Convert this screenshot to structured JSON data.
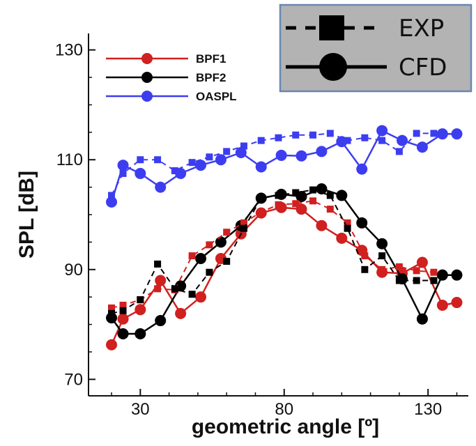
{
  "chart_data": {
    "type": "line",
    "xlabel": "geometric angle [º]",
    "ylabel": "SPL [dB]",
    "xlim": [
      12,
      144
    ],
    "ylim": [
      67,
      133
    ],
    "xticks": [
      30,
      80,
      130
    ],
    "yticks": [
      70,
      90,
      110,
      130
    ],
    "legend": {
      "placement": "top-left",
      "entries": [
        "BPF1",
        "BPF2",
        "OASPL"
      ]
    },
    "style_key": {
      "placement": "top-right",
      "entries": [
        {
          "label": "EXP",
          "line": "dashed",
          "marker": "square"
        },
        {
          "label": "CFD",
          "line": "solid",
          "marker": "circle"
        }
      ]
    },
    "colors": {
      "BPF1": "#d0201f",
      "BPF2": "#000000",
      "OASPL": "#3d3df0"
    },
    "series": [
      {
        "name": "BPF1",
        "source": "CFD",
        "color": "#d0201f",
        "x": [
          20,
          24,
          30,
          37,
          44,
          51,
          58,
          65,
          72,
          79,
          86,
          93,
          100,
          107,
          114,
          121,
          128,
          135,
          140
        ],
        "y": [
          76.3,
          81.0,
          82.7,
          88.0,
          82.0,
          85.0,
          92.0,
          96.5,
          100.3,
          101.3,
          101.0,
          98.0,
          95.7,
          93.5,
          89.5,
          89.3,
          91.3,
          83.5,
          84.0
        ]
      },
      {
        "name": "BPF2",
        "source": "CFD",
        "color": "#000000",
        "x": [
          20,
          24,
          30,
          37,
          44,
          51,
          58,
          65,
          72,
          79,
          86,
          93,
          100,
          107,
          114,
          121,
          128,
          135,
          140
        ],
        "y": [
          81.2,
          78.3,
          78.3,
          80.7,
          87.0,
          92.0,
          95.0,
          98.0,
          103.0,
          103.7,
          103.3,
          104.7,
          103.5,
          98.5,
          94.7,
          88.3,
          81.0,
          89.0,
          89.0
        ]
      },
      {
        "name": "OASPL",
        "source": "CFD",
        "color": "#3d3df0",
        "x": [
          20,
          24,
          30,
          37,
          44,
          51,
          58,
          65,
          72,
          79,
          86,
          93,
          100,
          107,
          114,
          121,
          128,
          135,
          140
        ],
        "y": [
          102.3,
          109.0,
          107.5,
          105.0,
          107.5,
          109.0,
          110.0,
          111.3,
          108.7,
          110.8,
          110.7,
          111.5,
          113.3,
          108.3,
          115.3,
          113.5,
          112.3,
          114.7,
          114.7
        ]
      },
      {
        "name": "BPF1",
        "source": "EXP",
        "color": "#d0201f",
        "x": [
          20,
          24,
          30,
          36,
          42,
          48,
          54,
          60,
          66,
          72,
          78,
          84,
          90,
          96,
          102,
          108,
          114,
          120,
          126,
          132
        ],
        "y": [
          83.0,
          83.5,
          84.5,
          86.5,
          86.3,
          92.5,
          94.5,
          96.8,
          98.5,
          100.5,
          101.8,
          102.0,
          102.5,
          101.0,
          98.5,
          92.5,
          90.0,
          90.5,
          89.8,
          89.5
        ]
      },
      {
        "name": "BPF2",
        "source": "EXP",
        "color": "#000000",
        "x": [
          20,
          24,
          30,
          36,
          42,
          48,
          54,
          60,
          66,
          72,
          78,
          84,
          90,
          96,
          102,
          108,
          114,
          120,
          126,
          132
        ],
        "y": [
          82.0,
          82.5,
          84.5,
          91.0,
          86.5,
          85.5,
          89.5,
          91.5,
          97.5,
          103.0,
          103.5,
          104.0,
          104.5,
          103.5,
          97.5,
          90.0,
          92.5,
          88.0,
          88.0,
          88.0
        ]
      },
      {
        "name": "OASPL",
        "source": "EXP",
        "color": "#3d3df0",
        "x": [
          20,
          24,
          30,
          36,
          42,
          48,
          54,
          60,
          66,
          72,
          78,
          84,
          90,
          96,
          102,
          108,
          114,
          120,
          126,
          132
        ],
        "y": [
          103.5,
          107.5,
          110.0,
          110.0,
          108.0,
          109.5,
          110.5,
          111.5,
          112.5,
          113.5,
          114.0,
          114.5,
          114.5,
          114.8,
          113.5,
          114.0,
          113.5,
          111.5,
          114.8,
          114.8
        ]
      }
    ]
  }
}
